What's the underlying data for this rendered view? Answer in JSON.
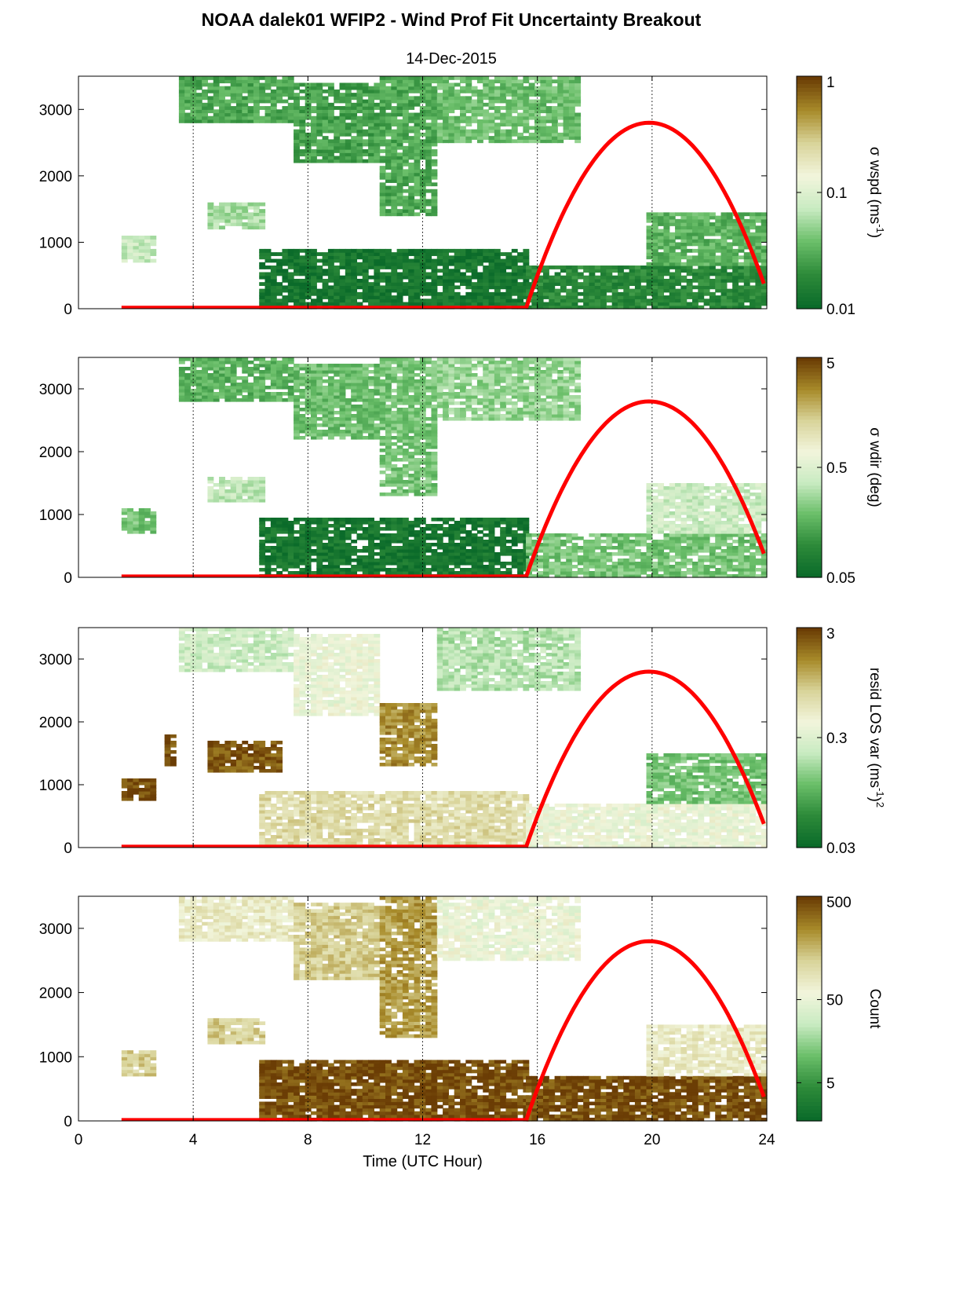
{
  "title": "NOAA dalek01 WFIP2 - Wind Prof Fit Uncertainty Breakout",
  "subtitle": "14-Dec-2015",
  "xlabel": "Time (UTC Hour)",
  "colors": {
    "curve": "#ff0000",
    "colormap": [
      "#0b6b2a",
      "#2e8b3a",
      "#6bbf6a",
      "#c9ebc2",
      "#f2f5dc",
      "#d9d49a",
      "#a88b2a",
      "#6b3d05"
    ]
  },
  "chart_data": [
    {
      "type": "heatmap",
      "panel": "wspd",
      "xlabel": "",
      "ylabel": "",
      "xlim": [
        0,
        24
      ],
      "ylim": [
        0,
        3500
      ],
      "yticks": [
        "0",
        "1000",
        "2000",
        "3000"
      ],
      "xticks": [],
      "colorbar": {
        "label": "σ wspd (ms",
        "label_sup": "-1",
        "label_suffix": ")",
        "scale": "log",
        "ticks": [
          "0.01",
          "0.1",
          "1"
        ]
      },
      "curve": {
        "x": [
          15.6,
          16,
          17,
          18,
          19,
          19.9,
          21,
          22,
          23,
          23.9
        ],
        "y": [
          0,
          250,
          1250,
          2100,
          2600,
          2800,
          2600,
          2000,
          1300,
          450
        ],
        "baseline_y": 20,
        "baseline_x": [
          1.5,
          15.6
        ]
      },
      "regions": [
        {
          "x": [
            6.3,
            15.6
          ],
          "y": [
            0,
            900
          ],
          "level": 0.05
        },
        {
          "x": [
            15.6,
            23.9
          ],
          "y": [
            0,
            650
          ],
          "level": 0.12
        },
        {
          "x": [
            19.8,
            23.9
          ],
          "y": [
            650,
            1450
          ],
          "level": 0.25
        },
        {
          "x": [
            3.5,
            7.5
          ],
          "y": [
            2800,
            3500
          ],
          "level": 0.22
        },
        {
          "x": [
            7.5,
            10.5
          ],
          "y": [
            2200,
            3400
          ],
          "level": 0.2
        },
        {
          "x": [
            10.5,
            12.5
          ],
          "y": [
            1400,
            3500
          ],
          "level": 0.22
        },
        {
          "x": [
            12.5,
            17.5
          ],
          "y": [
            2500,
            3500
          ],
          "level": 0.28
        },
        {
          "x": [
            4.5,
            6.5
          ],
          "y": [
            1200,
            1600
          ],
          "level": 0.38
        },
        {
          "x": [
            1.5,
            2.6
          ],
          "y": [
            700,
            1100
          ],
          "level": 0.44
        }
      ]
    },
    {
      "type": "heatmap",
      "panel": "wdir",
      "xlabel": "",
      "ylabel": "",
      "xlim": [
        0,
        24
      ],
      "ylim": [
        0,
        3500
      ],
      "yticks": [
        "0",
        "1000",
        "2000",
        "3000"
      ],
      "xticks": [],
      "colorbar": {
        "label": "σ wdir (deg)",
        "label_sup": "",
        "label_suffix": "",
        "scale": "log",
        "ticks": [
          "0.05",
          "0.5",
          "5"
        ]
      },
      "curve": {
        "x": [
          15.6,
          16,
          17,
          18,
          19,
          19.9,
          21,
          22,
          23,
          23.9
        ],
        "y": [
          0,
          250,
          1250,
          2100,
          2600,
          2800,
          2600,
          2000,
          1300,
          450
        ],
        "baseline_y": 20,
        "baseline_x": [
          1.5,
          15.6
        ]
      },
      "regions": [
        {
          "x": [
            6.3,
            15.6
          ],
          "y": [
            0,
            950
          ],
          "level": 0.05
        },
        {
          "x": [
            15.6,
            23.9
          ],
          "y": [
            0,
            700
          ],
          "level": 0.3
        },
        {
          "x": [
            19.8,
            23.9
          ],
          "y": [
            700,
            1500
          ],
          "level": 0.45
        },
        {
          "x": [
            3.5,
            7.5
          ],
          "y": [
            2800,
            3500
          ],
          "level": 0.25
        },
        {
          "x": [
            7.5,
            10.5
          ],
          "y": [
            2200,
            3400
          ],
          "level": 0.28
        },
        {
          "x": [
            10.5,
            12.5
          ],
          "y": [
            1300,
            3500
          ],
          "level": 0.3
        },
        {
          "x": [
            12.5,
            17.5
          ],
          "y": [
            2500,
            3500
          ],
          "level": 0.35
        },
        {
          "x": [
            4.5,
            6.5
          ],
          "y": [
            1200,
            1600
          ],
          "level": 0.42
        },
        {
          "x": [
            1.5,
            2.6
          ],
          "y": [
            700,
            1100
          ],
          "level": 0.3
        }
      ]
    },
    {
      "type": "heatmap",
      "panel": "resid",
      "xlabel": "",
      "ylabel": "",
      "xlim": [
        0,
        24
      ],
      "ylim": [
        0,
        3500
      ],
      "yticks": [
        "0",
        "1000",
        "2000",
        "3000"
      ],
      "xticks": [],
      "colorbar": {
        "label": "resid LOS var (ms",
        "label_sup": "-1",
        "label_suffix": ")",
        "label_sup2": "2",
        "scale": "log",
        "ticks": [
          "0.03",
          "0.3",
          "3"
        ]
      },
      "curve": {
        "x": [
          15.6,
          16,
          17,
          18,
          19,
          19.9,
          21,
          22,
          23,
          23.9
        ],
        "y": [
          0,
          250,
          1250,
          2100,
          2600,
          2800,
          2600,
          2000,
          1300,
          450
        ],
        "baseline_y": 20,
        "baseline_x": [
          1.5,
          15.6
        ]
      },
      "regions": [
        {
          "x": [
            6.3,
            15.6
          ],
          "y": [
            0,
            900
          ],
          "level": 0.68
        },
        {
          "x": [
            15.6,
            23.9
          ],
          "y": [
            0,
            700
          ],
          "level": 0.55
        },
        {
          "x": [
            19.8,
            23.9
          ],
          "y": [
            700,
            1500
          ],
          "level": 0.3
        },
        {
          "x": [
            3.5,
            7.5
          ],
          "y": [
            2800,
            3500
          ],
          "level": 0.45
        },
        {
          "x": [
            7.5,
            10.5
          ],
          "y": [
            2100,
            3400
          ],
          "level": 0.55
        },
        {
          "x": [
            10.5,
            12.5
          ],
          "y": [
            1300,
            2300
          ],
          "level": 0.85
        },
        {
          "x": [
            12.5,
            17.5
          ],
          "y": [
            2500,
            3500
          ],
          "level": 0.4
        },
        {
          "x": [
            4.5,
            7.0
          ],
          "y": [
            1200,
            1700
          ],
          "level": 0.95
        },
        {
          "x": [
            1.5,
            2.6
          ],
          "y": [
            750,
            1100
          ],
          "level": 0.98
        },
        {
          "x": [
            3.0,
            3.4
          ],
          "y": [
            1300,
            1800
          ],
          "level": 0.97
        }
      ]
    },
    {
      "type": "heatmap",
      "panel": "count",
      "xlabel": "Time (UTC Hour)",
      "ylabel": "",
      "xlim": [
        0,
        24
      ],
      "ylim": [
        0,
        3500
      ],
      "yticks": [
        "0",
        "1000",
        "2000",
        "3000"
      ],
      "xticks": [
        "0",
        "4",
        "8",
        "12",
        "16",
        "20",
        "24"
      ],
      "colorbar": {
        "label": "Count",
        "label_sup": "",
        "label_suffix": "",
        "scale": "log",
        "ticks": [
          "5",
          "50",
          "500"
        ]
      },
      "curve": {
        "x": [
          15.6,
          16,
          17,
          18,
          19,
          19.9,
          21,
          22,
          23,
          23.9
        ],
        "y": [
          0,
          250,
          1250,
          2100,
          2600,
          2800,
          2600,
          2000,
          1300,
          450
        ],
        "baseline_y": 20,
        "baseline_x": [
          1.5,
          15.6
        ]
      },
      "regions": [
        {
          "x": [
            6.3,
            15.6
          ],
          "y": [
            0,
            950
          ],
          "level": 0.97
        },
        {
          "x": [
            15.6,
            23.9
          ],
          "y": [
            0,
            700
          ],
          "level": 0.97
        },
        {
          "x": [
            19.8,
            23.9
          ],
          "y": [
            700,
            1500
          ],
          "level": 0.62
        },
        {
          "x": [
            3.5,
            7.5
          ],
          "y": [
            2800,
            3500
          ],
          "level": 0.62
        },
        {
          "x": [
            7.5,
            10.5
          ],
          "y": [
            2200,
            3400
          ],
          "level": 0.72
        },
        {
          "x": [
            10.5,
            12.5
          ],
          "y": [
            1300,
            3500
          ],
          "level": 0.82
        },
        {
          "x": [
            12.5,
            17.5
          ],
          "y": [
            2500,
            3500
          ],
          "level": 0.55
        },
        {
          "x": [
            4.5,
            6.5
          ],
          "y": [
            1200,
            1600
          ],
          "level": 0.72
        },
        {
          "x": [
            1.5,
            2.6
          ],
          "y": [
            700,
            1100
          ],
          "level": 0.72
        }
      ]
    }
  ]
}
